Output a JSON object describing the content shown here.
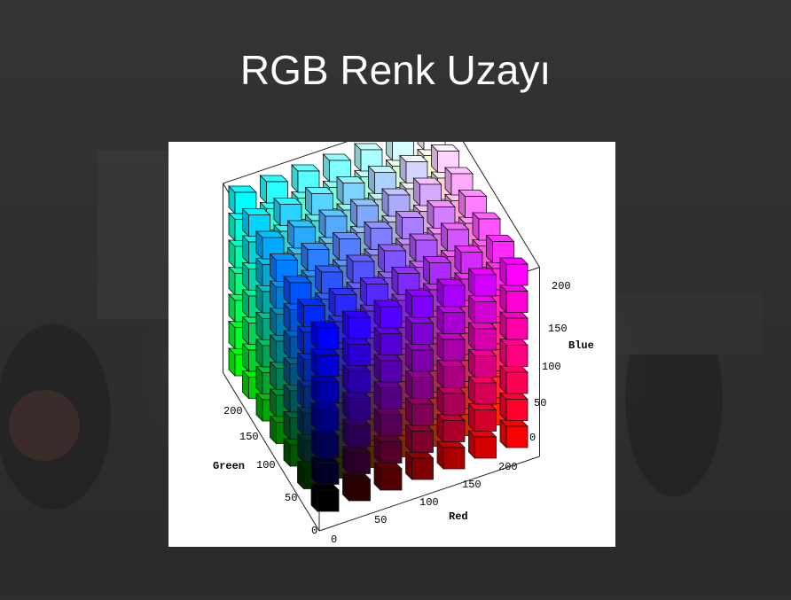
{
  "slide": {
    "title": "RGB Renk Uzayı"
  },
  "figure": {
    "axis_labels": {
      "red": "Red",
      "green": "Green",
      "blue": "Blue"
    },
    "ticks": {
      "red": [
        "0",
        "50",
        "100",
        "150",
        "200"
      ],
      "green": [
        "0",
        "50",
        "100",
        "150",
        "200"
      ],
      "blue": [
        "0",
        "50",
        "100",
        "150",
        "200"
      ]
    },
    "cube_steps": [
      0,
      42,
      85,
      127,
      170,
      212,
      255
    ]
  },
  "background": {
    "description_color": "#2f2f2f"
  }
}
